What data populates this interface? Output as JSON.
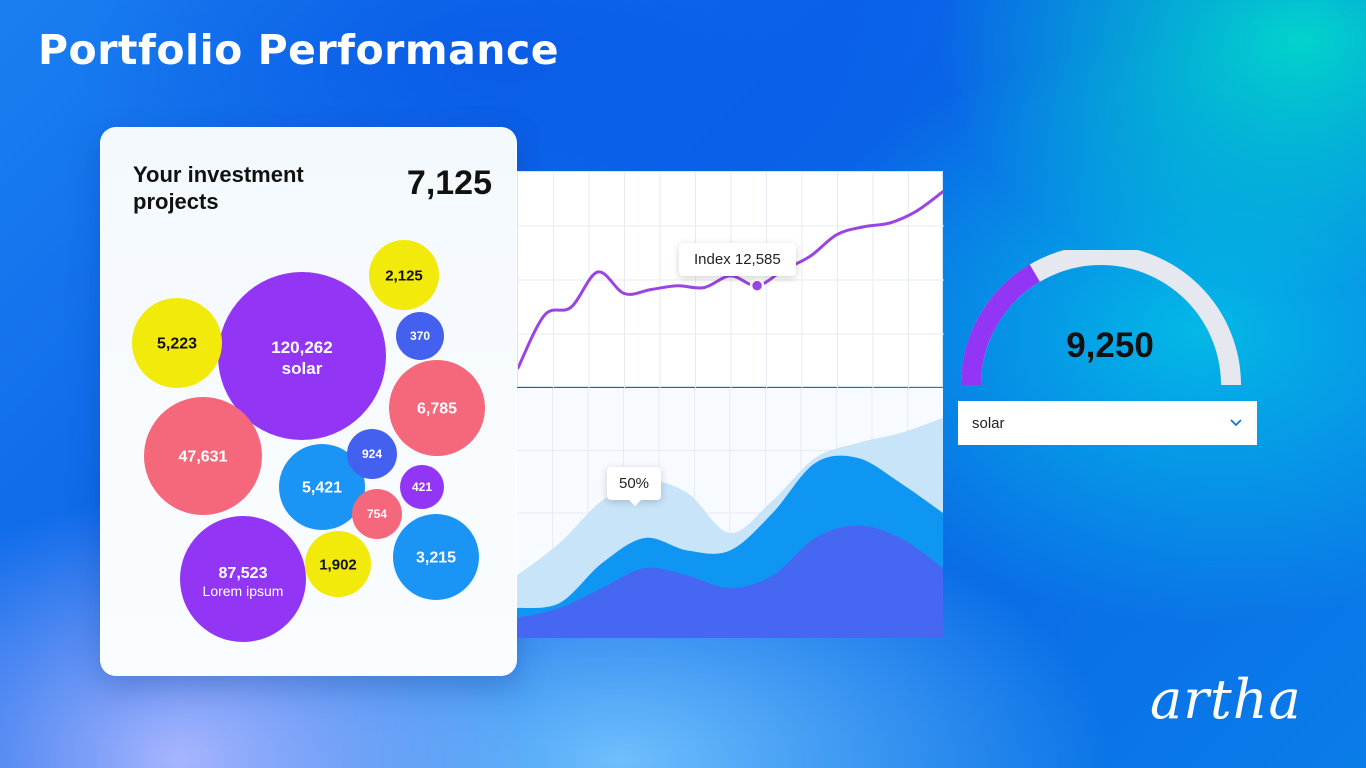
{
  "header": {
    "title": "Portfolio Performance"
  },
  "card": {
    "title": "Your investment projects",
    "total": "7,125"
  },
  "colors": {
    "purple": "#9335f4",
    "yellow": "#f2ea0b",
    "coral": "#f5677a",
    "blue": "#1a94f5",
    "indigo": "#4361ee",
    "line": "#9b45e0",
    "area_light": "#c8e4f8",
    "area_mid": "#0f96f2",
    "area_dark": "#4667f2",
    "gauge_track": "#e5e8ee"
  },
  "gauge": {
    "value": "9,250",
    "fraction": 0.33
  },
  "dropdown": {
    "selected": "solar",
    "icon": "chevron-down-icon"
  },
  "brand": {
    "name": "artha"
  },
  "chart_data": [
    {
      "type": "scatter",
      "subtype": "bubble",
      "bubbles": [
        {
          "value": "120,262",
          "label": "solar",
          "color": "purple"
        },
        {
          "value": "87,523",
          "label": "Lorem ipsum",
          "color": "purple"
        },
        {
          "value": "47,631",
          "label": "",
          "color": "coral"
        },
        {
          "value": "6,785",
          "label": "",
          "color": "coral"
        },
        {
          "value": "5,421",
          "label": "",
          "color": "blue"
        },
        {
          "value": "5,223",
          "label": "",
          "color": "yellow"
        },
        {
          "value": "3,215",
          "label": "",
          "color": "blue"
        },
        {
          "value": "2,125",
          "label": "",
          "color": "yellow"
        },
        {
          "value": "1,902",
          "label": "",
          "color": "yellow"
        },
        {
          "value": "924",
          "label": "",
          "color": "indigo"
        },
        {
          "value": "754",
          "label": "",
          "color": "coral"
        },
        {
          "value": "421",
          "label": "",
          "color": "purple"
        },
        {
          "value": "370",
          "label": "",
          "color": "indigo"
        }
      ]
    },
    {
      "type": "line",
      "x": [
        0,
        1,
        2,
        3,
        4,
        5,
        6,
        7,
        8,
        9,
        10,
        11,
        12,
        13,
        14,
        15,
        16
      ],
      "y": [
        0,
        27,
        31,
        49,
        38,
        40,
        42,
        41,
        47,
        42,
        50,
        57,
        68,
        72,
        74,
        80,
        90
      ],
      "ylim": [
        0,
        100
      ],
      "highlight": {
        "index": 9,
        "label": "Index 12,585"
      },
      "grid": true
    },
    {
      "type": "area",
      "x": [
        0,
        1,
        2,
        3,
        4,
        5,
        6,
        7,
        8,
        9,
        10
      ],
      "series": [
        {
          "values": [
            25,
            38,
            55,
            63,
            58,
            42,
            55,
            72,
            78,
            82,
            88
          ]
        },
        {
          "values": [
            12,
            14,
            30,
            40,
            35,
            35,
            50,
            70,
            72,
            62,
            50
          ]
        },
        {
          "values": [
            8,
            12,
            20,
            28,
            25,
            20,
            25,
            40,
            45,
            40,
            28
          ]
        }
      ],
      "ylim": [
        0,
        100
      ],
      "annotation": {
        "index": 4,
        "label": "50%"
      },
      "grid": true
    }
  ]
}
